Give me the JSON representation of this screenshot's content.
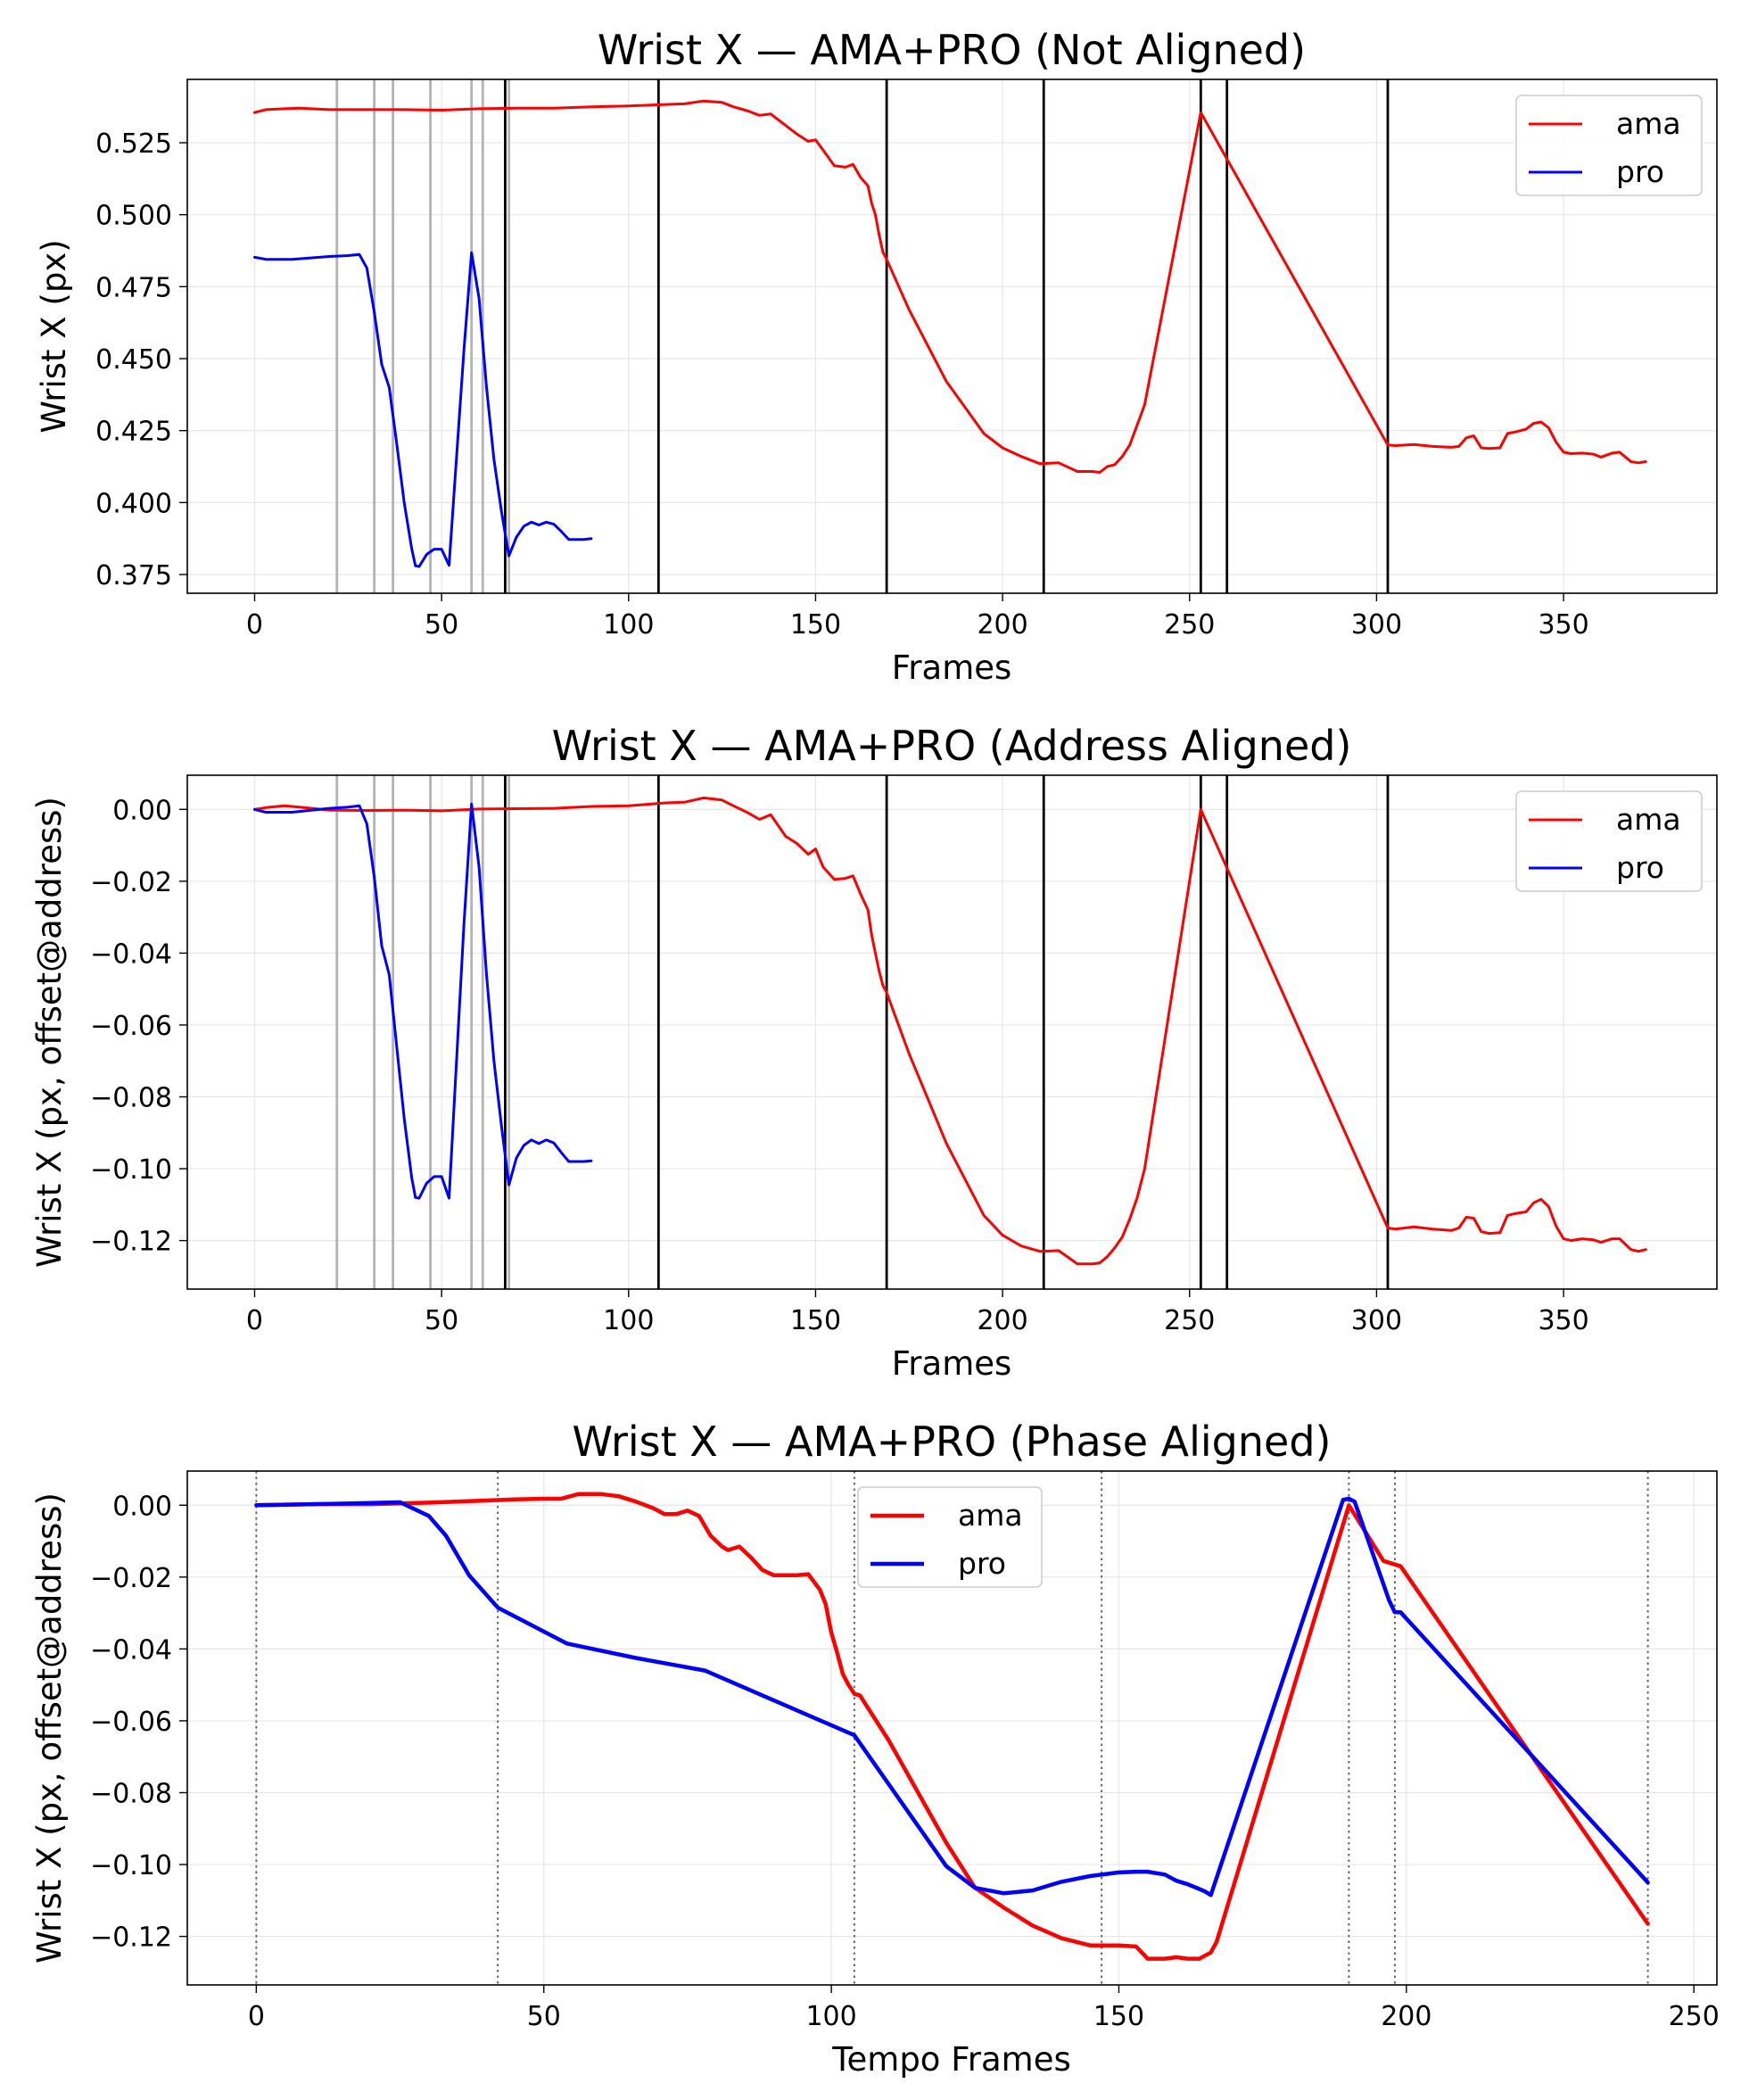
{
  "chart_data": [
    {
      "type": "line",
      "title": "Wrist X — AMA+PRO (Not Aligned)",
      "xlabel": "Frames",
      "ylabel": "Wrist X (px)",
      "xlim": [
        -18,
        391
      ],
      "ylim": [
        0.3685,
        0.547
      ],
      "xticks": [
        0,
        50,
        100,
        150,
        200,
        250,
        300,
        350
      ],
      "xtick_labels": [
        "0",
        "50",
        "100",
        "150",
        "200",
        "250",
        "300",
        "350"
      ],
      "yticks": [
        0.375,
        0.4,
        0.425,
        0.45,
        0.475,
        0.5,
        0.525
      ],
      "ytick_labels": [
        "0.375",
        "0.400",
        "0.425",
        "0.450",
        "0.475",
        "0.500",
        "0.525"
      ],
      "grid": true,
      "legend_position": "upper right",
      "series": [
        {
          "name": "ama",
          "color": "#ff0000",
          "x": [
            0,
            3,
            8,
            12,
            20,
            30,
            40,
            50,
            60,
            70,
            80,
            90,
            100,
            110,
            115,
            120,
            125,
            128,
            132,
            135,
            138,
            140,
            142,
            145,
            148,
            150,
            152,
            155,
            158,
            160,
            162,
            164,
            165,
            166,
            167,
            168,
            169,
            175,
            185,
            195,
            200,
            205,
            210,
            215,
            220,
            224,
            226,
            228,
            230,
            232,
            234,
            236,
            238,
            253,
            303,
            305,
            310,
            315,
            320,
            322,
            324,
            326,
            328,
            330,
            333,
            335,
            337,
            340,
            342,
            344,
            346,
            348,
            350,
            352,
            355,
            358,
            360,
            363,
            365,
            368,
            370,
            372
          ],
          "y": [
            0.5355,
            0.5365,
            0.5368,
            0.537,
            0.5365,
            0.5365,
            0.5365,
            0.5363,
            0.5368,
            0.537,
            0.537,
            0.5375,
            0.5378,
            0.5383,
            0.5385,
            0.5395,
            0.539,
            0.5375,
            0.536,
            0.5345,
            0.535,
            0.533,
            0.531,
            0.528,
            0.5255,
            0.526,
            0.5225,
            0.517,
            0.5165,
            0.5175,
            0.513,
            0.51,
            0.504,
            0.5,
            0.493,
            0.487,
            0.4845,
            0.467,
            0.442,
            0.424,
            0.419,
            0.416,
            0.4135,
            0.4138,
            0.4108,
            0.4108,
            0.4105,
            0.4125,
            0.4132,
            0.416,
            0.42,
            0.427,
            0.434,
            0.5355,
            0.42,
            0.4198,
            0.4202,
            0.4195,
            0.4192,
            0.4195,
            0.4225,
            0.4232,
            0.419,
            0.4188,
            0.419,
            0.424,
            0.4245,
            0.4255,
            0.4275,
            0.428,
            0.426,
            0.421,
            0.4175,
            0.417,
            0.4172,
            0.4168,
            0.4158,
            0.4172,
            0.4175,
            0.4142,
            0.4138,
            0.4142
          ]
        },
        {
          "name": "pro",
          "color": "#0000ff",
          "x": [
            0,
            3,
            10,
            20,
            25,
            28,
            30,
            32,
            34,
            36,
            38,
            40,
            42,
            43,
            44,
            46,
            48,
            50,
            52,
            56,
            58,
            60,
            62,
            64,
            66,
            68,
            70,
            72,
            74,
            76,
            78,
            80,
            82,
            84,
            86,
            88,
            90
          ],
          "y": [
            0.4852,
            0.4845,
            0.4845,
            0.4855,
            0.4858,
            0.4862,
            0.4815,
            0.466,
            0.448,
            0.44,
            0.4205,
            0.4,
            0.384,
            0.378,
            0.3778,
            0.382,
            0.3838,
            0.3838,
            0.3782,
            0.4535,
            0.4868,
            0.471,
            0.44,
            0.415,
            0.397,
            0.3815,
            0.388,
            0.3918,
            0.3932,
            0.3922,
            0.3932,
            0.3925,
            0.39,
            0.3872,
            0.3872,
            0.3872,
            0.3875
          ]
        }
      ],
      "vlines": [
        {
          "x": 22,
          "color": "#b3b3b3"
        },
        {
          "x": 32,
          "color": "#b3b3b3"
        },
        {
          "x": 37,
          "color": "#b3b3b3"
        },
        {
          "x": 47,
          "color": "#b3b3b3"
        },
        {
          "x": 58,
          "color": "#b3b3b3"
        },
        {
          "x": 61,
          "color": "#b3b3b3"
        },
        {
          "x": 68,
          "color": "#b3b3b3"
        },
        {
          "x": 67,
          "color": "#000000"
        },
        {
          "x": 108,
          "color": "#000000"
        },
        {
          "x": 169,
          "color": "#000000"
        },
        {
          "x": 211,
          "color": "#000000"
        },
        {
          "x": 253,
          "color": "#000000"
        },
        {
          "x": 260,
          "color": "#000000"
        },
        {
          "x": 303,
          "color": "#000000"
        }
      ]
    },
    {
      "type": "line",
      "title": "Wrist X — AMA+PRO (Address Aligned)",
      "xlabel": "Frames",
      "ylabel": "Wrist X (px, offset@address)",
      "xlim": [
        -18,
        391
      ],
      "ylim": [
        -0.1335,
        0.0095
      ],
      "xticks": [
        0,
        50,
        100,
        150,
        200,
        250,
        300,
        350
      ],
      "xtick_labels": [
        "0",
        "50",
        "100",
        "150",
        "200",
        "250",
        "300",
        "350"
      ],
      "yticks": [
        -0.12,
        -0.1,
        -0.08,
        -0.06,
        -0.04,
        -0.02,
        0.0
      ],
      "ytick_labels": [
        "−0.12",
        "−0.10",
        "−0.08",
        "−0.06",
        "−0.04",
        "−0.02",
        "0.00"
      ],
      "grid": true,
      "legend_position": "upper right",
      "series": [
        {
          "name": "ama",
          "color": "#ff0000",
          "x": [
            0,
            3,
            8,
            12,
            20,
            30,
            40,
            50,
            60,
            70,
            80,
            90,
            100,
            110,
            115,
            120,
            125,
            128,
            132,
            135,
            138,
            140,
            142,
            145,
            148,
            150,
            152,
            155,
            158,
            160,
            162,
            164,
            165,
            166,
            167,
            168,
            169,
            175,
            185,
            195,
            200,
            205,
            210,
            215,
            220,
            224,
            226,
            228,
            230,
            232,
            234,
            236,
            238,
            253,
            303,
            305,
            310,
            315,
            320,
            322,
            324,
            326,
            328,
            330,
            333,
            335,
            337,
            340,
            342,
            344,
            346,
            348,
            350,
            352,
            355,
            358,
            360,
            363,
            365,
            368,
            370,
            372
          ],
          "y": [
            0.0,
            0.0005,
            0.001,
            0.0006,
            -0.0002,
            -0.0003,
            -0.0002,
            -0.0004,
            0.0001,
            0.0002,
            0.0003,
            0.0008,
            0.001,
            0.0018,
            0.002,
            0.0032,
            0.0026,
            0.001,
            -0.001,
            -0.0028,
            -0.0015,
            -0.0045,
            -0.0075,
            -0.0095,
            -0.0125,
            -0.011,
            -0.016,
            -0.0195,
            -0.0192,
            -0.0185,
            -0.0235,
            -0.028,
            -0.035,
            -0.04,
            -0.045,
            -0.049,
            -0.051,
            -0.068,
            -0.093,
            -0.113,
            -0.1185,
            -0.1215,
            -0.123,
            -0.1228,
            -0.1265,
            -0.1265,
            -0.1262,
            -0.1245,
            -0.122,
            -0.119,
            -0.114,
            -0.108,
            -0.1,
            0.0,
            -0.1165,
            -0.1168,
            -0.1162,
            -0.1168,
            -0.1172,
            -0.1165,
            -0.1135,
            -0.1138,
            -0.1175,
            -0.118,
            -0.1178,
            -0.113,
            -0.1125,
            -0.112,
            -0.1095,
            -0.1085,
            -0.1105,
            -0.116,
            -0.1195,
            -0.12,
            -0.1195,
            -0.1198,
            -0.1205,
            -0.1195,
            -0.1195,
            -0.1225,
            -0.123,
            -0.1225
          ]
        },
        {
          "name": "pro",
          "color": "#0000ff",
          "x": [
            0,
            3,
            10,
            20,
            25,
            28,
            30,
            32,
            34,
            36,
            38,
            40,
            42,
            43,
            44,
            46,
            48,
            50,
            52,
            56,
            58,
            60,
            62,
            64,
            66,
            68,
            70,
            72,
            74,
            76,
            78,
            80,
            82,
            84,
            86,
            88,
            90
          ],
          "y": [
            0.0,
            -0.0008,
            -0.0008,
            0.0003,
            0.0006,
            0.001,
            -0.004,
            -0.019,
            -0.038,
            -0.046,
            -0.066,
            -0.086,
            -0.1025,
            -0.108,
            -0.1082,
            -0.104,
            -0.1022,
            -0.1022,
            -0.1082,
            -0.0315,
            0.0015,
            -0.016,
            -0.046,
            -0.07,
            -0.088,
            -0.1045,
            -0.097,
            -0.0935,
            -0.092,
            -0.093,
            -0.092,
            -0.0928,
            -0.0955,
            -0.098,
            -0.098,
            -0.098,
            -0.0978
          ]
        }
      ],
      "vlines": [
        {
          "x": 22,
          "color": "#b3b3b3"
        },
        {
          "x": 32,
          "color": "#b3b3b3"
        },
        {
          "x": 37,
          "color": "#b3b3b3"
        },
        {
          "x": 47,
          "color": "#b3b3b3"
        },
        {
          "x": 58,
          "color": "#b3b3b3"
        },
        {
          "x": 61,
          "color": "#b3b3b3"
        },
        {
          "x": 68,
          "color": "#b3b3b3"
        },
        {
          "x": 67,
          "color": "#000000"
        },
        {
          "x": 108,
          "color": "#000000"
        },
        {
          "x": 169,
          "color": "#000000"
        },
        {
          "x": 211,
          "color": "#000000"
        },
        {
          "x": 253,
          "color": "#000000"
        },
        {
          "x": 260,
          "color": "#000000"
        },
        {
          "x": 303,
          "color": "#000000"
        }
      ]
    },
    {
      "type": "line",
      "title": "Wrist X — AMA+PRO (Phase Aligned)",
      "xlabel": "Tempo Frames",
      "ylabel": "Wrist X (px, offset@address)",
      "xlim": [
        -12,
        254
      ],
      "ylim": [
        -0.1335,
        0.0095
      ],
      "xticks": [
        0,
        50,
        100,
        150,
        200,
        250
      ],
      "xtick_labels": [
        "0",
        "50",
        "100",
        "150",
        "200",
        "250"
      ],
      "yticks": [
        -0.12,
        -0.1,
        -0.08,
        -0.06,
        -0.04,
        -0.02,
        0.0
      ],
      "ytick_labels": [
        "−0.12",
        "−0.10",
        "−0.08",
        "−0.06",
        "−0.04",
        "−0.02",
        "0.00"
      ],
      "grid": true,
      "legend_position": "upper center",
      "series": [
        {
          "name": "ama",
          "color": "#ff0000",
          "x": [
            0,
            10,
            20,
            30,
            40,
            45,
            50,
            53,
            56,
            60,
            63,
            66,
            69,
            71,
            73,
            75,
            77,
            79,
            81,
            82,
            84,
            86,
            88,
            90,
            92,
            94,
            96,
            98,
            99,
            100,
            101,
            102,
            103,
            104,
            105,
            110,
            120,
            125,
            130,
            135,
            140,
            145,
            150,
            153,
            155,
            158,
            160,
            162,
            164,
            166,
            167,
            190,
            196,
            199,
            242
          ],
          "y": [
            0.0,
            0.0003,
            0.0003,
            0.0007,
            0.0013,
            0.0016,
            0.0018,
            0.0018,
            0.0031,
            0.0031,
            0.0025,
            0.001,
            -0.0008,
            -0.0025,
            -0.0025,
            -0.0015,
            -0.003,
            -0.0085,
            -0.0115,
            -0.0125,
            -0.0115,
            -0.0145,
            -0.018,
            -0.0195,
            -0.0195,
            -0.0195,
            -0.0192,
            -0.0235,
            -0.0275,
            -0.0355,
            -0.041,
            -0.047,
            -0.05,
            -0.0525,
            -0.053,
            -0.0655,
            -0.094,
            -0.1065,
            -0.112,
            -0.117,
            -0.1205,
            -0.1225,
            -0.1225,
            -0.1228,
            -0.1262,
            -0.1262,
            -0.1258,
            -0.1262,
            -0.1262,
            -0.1245,
            -0.1215,
            0.0,
            -0.0155,
            -0.017,
            -0.1165
          ]
        },
        {
          "name": "pro",
          "color": "#0000ff",
          "x": [
            0,
            10,
            20,
            25,
            30,
            33,
            37,
            42,
            54,
            66,
            78,
            104,
            120,
            125,
            130,
            135,
            140,
            145,
            150,
            153,
            155,
            158,
            160,
            162,
            164,
            165,
            166,
            189,
            190,
            191,
            197,
            198,
            199,
            242
          ],
          "y": [
            0.0,
            0.0003,
            0.0006,
            0.0008,
            -0.003,
            -0.0085,
            -0.0195,
            -0.0285,
            -0.0385,
            -0.0425,
            -0.046,
            -0.064,
            -0.1005,
            -0.1065,
            -0.108,
            -0.1072,
            -0.1048,
            -0.1032,
            -0.1022,
            -0.102,
            -0.102,
            -0.1028,
            -0.1045,
            -0.1055,
            -0.1068,
            -0.1075,
            -0.1085,
            0.0015,
            0.0018,
            0.001,
            -0.0265,
            -0.0298,
            -0.0298,
            -0.105
          ]
        }
      ],
      "vlines": [
        {
          "x": 0,
          "color": "#666666",
          "style": "dotted"
        },
        {
          "x": 42,
          "color": "#666666",
          "style": "dotted"
        },
        {
          "x": 104,
          "color": "#666666",
          "style": "dotted"
        },
        {
          "x": 147,
          "color": "#666666",
          "style": "dotted"
        },
        {
          "x": 190,
          "color": "#666666",
          "style": "dotted"
        },
        {
          "x": 198,
          "color": "#666666",
          "style": "dotted"
        },
        {
          "x": 242,
          "color": "#666666",
          "style": "dotted"
        }
      ]
    }
  ]
}
